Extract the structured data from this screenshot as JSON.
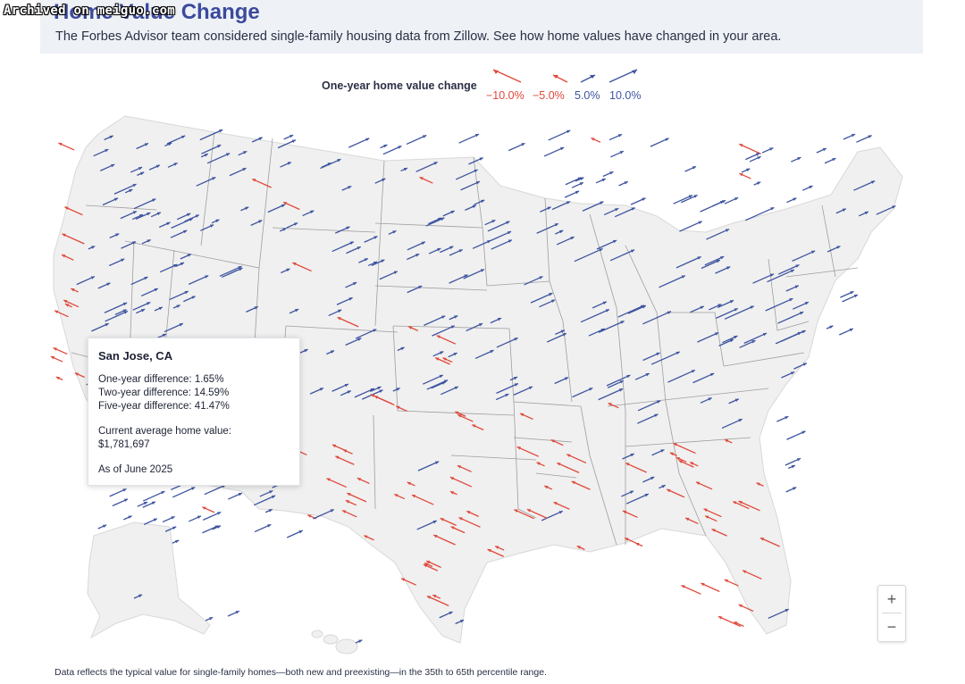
{
  "archive": {
    "badge_text": "Archived on meiguo.com"
  },
  "header": {
    "title": "Home Value Change",
    "subtitle": "The Forbes Advisor team considered single-family housing data from Zillow. See how home values have changed in your area."
  },
  "legend": {
    "title": "One-year home value change",
    "items": [
      {
        "label": "−10.0%",
        "value": -10.0,
        "color": "#e0483a"
      },
      {
        "label": "−5.0%",
        "value": -5.0,
        "color": "#e0483a"
      },
      {
        "label": "5.0%",
        "value": 5.0,
        "color": "#3d54a0"
      },
      {
        "label": "10.0%",
        "value": 10.0,
        "color": "#3d54a0"
      }
    ]
  },
  "colors": {
    "negative": "#e0483a",
    "positive": "#3d54a0",
    "land": "#f0f0f0",
    "border": "#9a9a9a"
  },
  "tooltip": {
    "city": "San Jose, CA",
    "one_year": "One-year difference: 1.65%",
    "two_year": "Two-year difference: 14.59%",
    "five_year": "Five-year difference: 41.47%",
    "current_label": "Current average home value:",
    "current_value": "$1,781,697",
    "as_of": "As of June 2025"
  },
  "zoom": {
    "in_label": "+",
    "out_label": "−"
  },
  "footnote": "Data reflects the typical value for single-family homes—both new and preexisting—in the 35th to 65th percentile range."
}
